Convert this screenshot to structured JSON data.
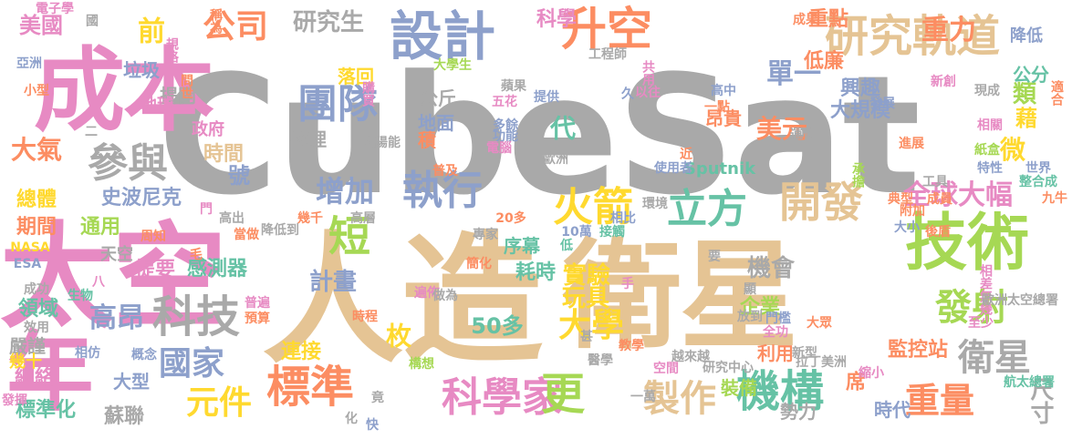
{
  "palette": {
    "gray": "#a9a9a9",
    "pink": "#e78ac3",
    "tan": "#e5c494",
    "green": "#a6d854",
    "orange": "#fc8d62",
    "teal": "#66c2a5",
    "blue": "#8da0cb",
    "yellow": "#ffd92f"
  },
  "words": [
    {
      "text": "CubeSat",
      "color": "gray"
    },
    {
      "text": "人造",
      "color": "tan"
    },
    {
      "text": "衛星",
      "color": "tan"
    },
    {
      "text": "太空",
      "color": "pink"
    },
    {
      "text": "成本",
      "color": "pink"
    },
    {
      "text": "年",
      "color": "pink"
    },
    {
      "text": "技術",
      "color": "green"
    },
    {
      "text": "研究軌道",
      "color": "tan"
    },
    {
      "text": "設計",
      "color": "blue"
    },
    {
      "text": "升空",
      "color": "orange"
    },
    {
      "text": "科學家",
      "color": "pink"
    },
    {
      "text": "標準",
      "color": "orange"
    },
    {
      "text": "機構",
      "color": "teal"
    },
    {
      "text": "科技",
      "color": "gray"
    },
    {
      "text": "參與",
      "color": "gray"
    },
    {
      "text": "團隊",
      "color": "blue"
    },
    {
      "text": "執行",
      "color": "blue"
    },
    {
      "text": "火箭",
      "color": "yellow"
    },
    {
      "text": "立方",
      "color": "teal"
    },
    {
      "text": "開發",
      "color": "tan"
    },
    {
      "text": "發射",
      "color": "green"
    },
    {
      "text": "衛星",
      "color": "gray"
    },
    {
      "text": "更",
      "color": "green"
    },
    {
      "text": "短",
      "color": "green"
    },
    {
      "text": "增加",
      "color": "blue"
    },
    {
      "text": "製作",
      "color": "tan"
    },
    {
      "text": "重量",
      "color": "orange"
    },
    {
      "text": "公司",
      "color": "orange"
    },
    {
      "text": "大學",
      "color": "yellow"
    },
    {
      "text": "國家",
      "color": "blue"
    },
    {
      "text": "元件",
      "color": "yellow"
    },
    {
      "text": "高昂",
      "color": "blue"
    },
    {
      "text": "重力",
      "color": "orange"
    },
    {
      "text": "全球大幅",
      "color": "pink"
    },
    {
      "text": "單一",
      "color": "blue"
    },
    {
      "text": "美元",
      "color": "orange"
    },
    {
      "text": "實驗",
      "color": "yellow"
    },
    {
      "text": "計畫",
      "color": "blue"
    },
    {
      "text": "玩具",
      "color": "yellow"
    },
    {
      "text": "機會",
      "color": "gray"
    },
    {
      "text": "大氣",
      "color": "orange"
    },
    {
      "text": "前",
      "color": "yellow"
    },
    {
      "text": "研究生",
      "color": "gray"
    },
    {
      "text": "美國",
      "color": "pink"
    },
    {
      "text": "科學",
      "color": "pink"
    },
    {
      "text": "重點",
      "color": "orange"
    },
    {
      "text": "低廉",
      "color": "orange"
    },
    {
      "text": "興趣",
      "color": "blue"
    },
    {
      "text": "大規模",
      "color": "blue"
    },
    {
      "text": "微",
      "color": "yellow"
    },
    {
      "text": "藉",
      "color": "yellow"
    },
    {
      "text": "類",
      "color": "green"
    },
    {
      "text": "公分",
      "color": "teal"
    },
    {
      "text": "降低",
      "color": "blue"
    },
    {
      "text": "尺寸",
      "color": "gray"
    },
    {
      "text": "代",
      "color": "teal"
    },
    {
      "text": "地面",
      "color": "blue"
    },
    {
      "text": "物理",
      "color": "gray"
    },
    {
      "text": "公斤",
      "color": "gray"
    },
    {
      "text": "積",
      "color": "orange"
    },
    {
      "text": "落回",
      "color": "yellow"
    },
    {
      "text": "垃圾",
      "color": "blue"
    },
    {
      "text": "揭開",
      "color": "gray"
    },
    {
      "text": "時間",
      "color": "tan"
    },
    {
      "text": "號",
      "color": "blue"
    },
    {
      "text": "地球",
      "color": "pink"
    },
    {
      "text": "政府",
      "color": "pink"
    },
    {
      "text": "總體",
      "color": "yellow"
    },
    {
      "text": "史波尼克",
      "color": "blue"
    },
    {
      "text": "期間",
      "color": "orange"
    },
    {
      "text": "通用",
      "color": "green"
    },
    {
      "text": "天空",
      "color": "gray"
    },
    {
      "text": "提要",
      "color": "pink"
    },
    {
      "text": "感測器",
      "color": "teal"
    },
    {
      "text": "領域",
      "color": "teal"
    },
    {
      "text": "嚴謹",
      "color": "gray"
    },
    {
      "text": "網絡",
      "color": "pink"
    },
    {
      "text": "幾十",
      "color": "yellow"
    },
    {
      "text": "標準化",
      "color": "teal"
    },
    {
      "text": "蘇聯",
      "color": "gray"
    },
    {
      "text": "大型",
      "color": "blue"
    },
    {
      "text": "連接",
      "color": "yellow"
    },
    {
      "text": "枚",
      "color": "yellow"
    },
    {
      "text": "50多",
      "color": "teal"
    },
    {
      "text": "序幕",
      "color": "teal"
    },
    {
      "text": "耗時",
      "color": "teal"
    },
    {
      "text": "企業",
      "color": "green"
    },
    {
      "text": "利用",
      "color": "orange"
    },
    {
      "text": "監控站",
      "color": "orange"
    },
    {
      "text": "時代",
      "color": "blue"
    },
    {
      "text": "裝備",
      "color": "green"
    },
    {
      "text": "勢力",
      "color": "gray"
    },
    {
      "text": "席",
      "color": "orange"
    },
    {
      "text": "Sputnik",
      "color": "teal"
    },
    {
      "text": "昂貴",
      "color": "orange"
    },
    {
      "text": "成果",
      "color": "orange"
    },
    {
      "text": "稱為",
      "color": "orange"
    },
    {
      "text": "電子學",
      "color": "pink"
    },
    {
      "text": "國",
      "color": "gray"
    },
    {
      "text": "亞洲",
      "color": "blue"
    },
    {
      "text": "小型",
      "color": "orange"
    },
    {
      "text": "規格",
      "color": "pink"
    },
    {
      "text": "問世",
      "color": "orange"
    },
    {
      "text": "大學生",
      "color": "green"
    },
    {
      "text": "購買",
      "color": "pink"
    },
    {
      "text": "工程師",
      "color": "gray"
    },
    {
      "text": "蘋果",
      "color": "gray"
    },
    {
      "text": "五花",
      "color": "pink"
    },
    {
      "text": "共用",
      "color": "pink"
    },
    {
      "text": "以往",
      "color": "pink"
    },
    {
      "text": "久",
      "color": "blue"
    },
    {
      "text": "提供",
      "color": "blue"
    },
    {
      "text": "多餘",
      "color": "blue"
    },
    {
      "text": "功能",
      "color": "blue"
    },
    {
      "text": "電腦",
      "color": "pink"
    },
    {
      "text": "太陽能",
      "color": "gray"
    },
    {
      "text": "高中",
      "color": "blue"
    },
    {
      "text": "一點",
      "color": "orange"
    },
    {
      "text": "運作",
      "color": "gray"
    },
    {
      "text": "近",
      "color": "orange"
    },
    {
      "text": "使用者",
      "color": "blue"
    },
    {
      "text": "歐洲",
      "color": "gray"
    },
    {
      "text": "新創",
      "color": "pink"
    },
    {
      "text": "適合",
      "color": "orange"
    },
    {
      "text": "現成",
      "color": "gray"
    },
    {
      "text": "相關",
      "color": "pink"
    },
    {
      "text": "紙盒",
      "color": "green"
    },
    {
      "text": "世界",
      "color": "blue"
    },
    {
      "text": "整合成",
      "color": "teal"
    },
    {
      "text": "發展",
      "color": "blue"
    },
    {
      "text": "進展",
      "color": "orange"
    },
    {
      "text": "特性",
      "color": "blue"
    },
    {
      "text": "九牛",
      "color": "orange"
    },
    {
      "text": "工具",
      "color": "gray"
    },
    {
      "text": "典型",
      "color": "orange"
    },
    {
      "text": "承擔",
      "color": "green"
    },
    {
      "text": "成員",
      "color": "orange"
    },
    {
      "text": "大小",
      "color": "blue"
    },
    {
      "text": "後盾",
      "color": "orange"
    },
    {
      "text": "附加",
      "color": "orange"
    },
    {
      "text": "相差無幾",
      "color": "pink"
    },
    {
      "text": "歐洲太空總署",
      "color": "gray"
    },
    {
      "text": "至少",
      "color": "pink"
    },
    {
      "text": "大眾",
      "color": "orange"
    },
    {
      "text": "全功",
      "color": "pink"
    },
    {
      "text": "拉丁美洲",
      "color": "gray"
    },
    {
      "text": "門檻",
      "color": "blue"
    },
    {
      "text": "越來越",
      "color": "gray"
    },
    {
      "text": "研究中心",
      "color": "gray"
    },
    {
      "text": "醫學",
      "color": "gray"
    },
    {
      "text": "教學",
      "color": "orange"
    },
    {
      "text": "縮小",
      "color": "pink"
    },
    {
      "text": "航太總署",
      "color": "teal"
    },
    {
      "text": "一萬",
      "color": "gray"
    },
    {
      "text": "新型",
      "color": "gray"
    },
    {
      "text": "空間",
      "color": "pink"
    },
    {
      "text": "接觸",
      "color": "teal"
    },
    {
      "text": "10萬",
      "color": "blue"
    },
    {
      "text": "低",
      "color": "teal"
    },
    {
      "text": "專家",
      "color": "gray"
    },
    {
      "text": "簡化",
      "color": "orange"
    },
    {
      "text": "遍佈",
      "color": "pink"
    },
    {
      "text": "做為",
      "color": "gray"
    },
    {
      "text": "時程",
      "color": "orange"
    },
    {
      "text": "普遍",
      "color": "pink"
    },
    {
      "text": "預算",
      "color": "orange"
    },
    {
      "text": "降低到",
      "color": "gray"
    },
    {
      "text": "幾千",
      "color": "orange"
    },
    {
      "text": "高出",
      "color": "gray"
    },
    {
      "text": "當做",
      "color": "orange"
    },
    {
      "text": "周知",
      "color": "orange"
    },
    {
      "text": "NASA",
      "color": "yellow"
    },
    {
      "text": "ESA",
      "color": "blue"
    },
    {
      "text": "成功",
      "color": "gray"
    },
    {
      "text": "生物",
      "color": "teal"
    },
    {
      "text": "效用",
      "color": "gray"
    },
    {
      "text": "相仿",
      "color": "blue"
    },
    {
      "text": "概念",
      "color": "blue"
    },
    {
      "text": "相比",
      "color": "blue"
    },
    {
      "text": "環境",
      "color": "gray"
    },
    {
      "text": "20多",
      "color": "orange"
    },
    {
      "text": "普及",
      "color": "orange"
    },
    {
      "text": "高層",
      "color": "gray"
    },
    {
      "text": "門",
      "color": "pink"
    },
    {
      "text": "化",
      "color": "gray"
    },
    {
      "text": "快",
      "color": "blue"
    },
    {
      "text": "構想",
      "color": "green"
    },
    {
      "text": "竟",
      "color": "gray"
    },
    {
      "text": "發揮",
      "color": "pink"
    },
    {
      "text": "放到",
      "color": "gray"
    },
    {
      "text": "顯",
      "color": "gray"
    },
    {
      "text": "甚",
      "color": "gray"
    },
    {
      "text": "要",
      "color": "gray"
    },
    {
      "text": "八",
      "color": "pink"
    },
    {
      "text": "二",
      "color": "gray"
    },
    {
      "text": "毛",
      "color": "orange"
    },
    {
      "text": "手",
      "color": "pink"
    }
  ]
}
